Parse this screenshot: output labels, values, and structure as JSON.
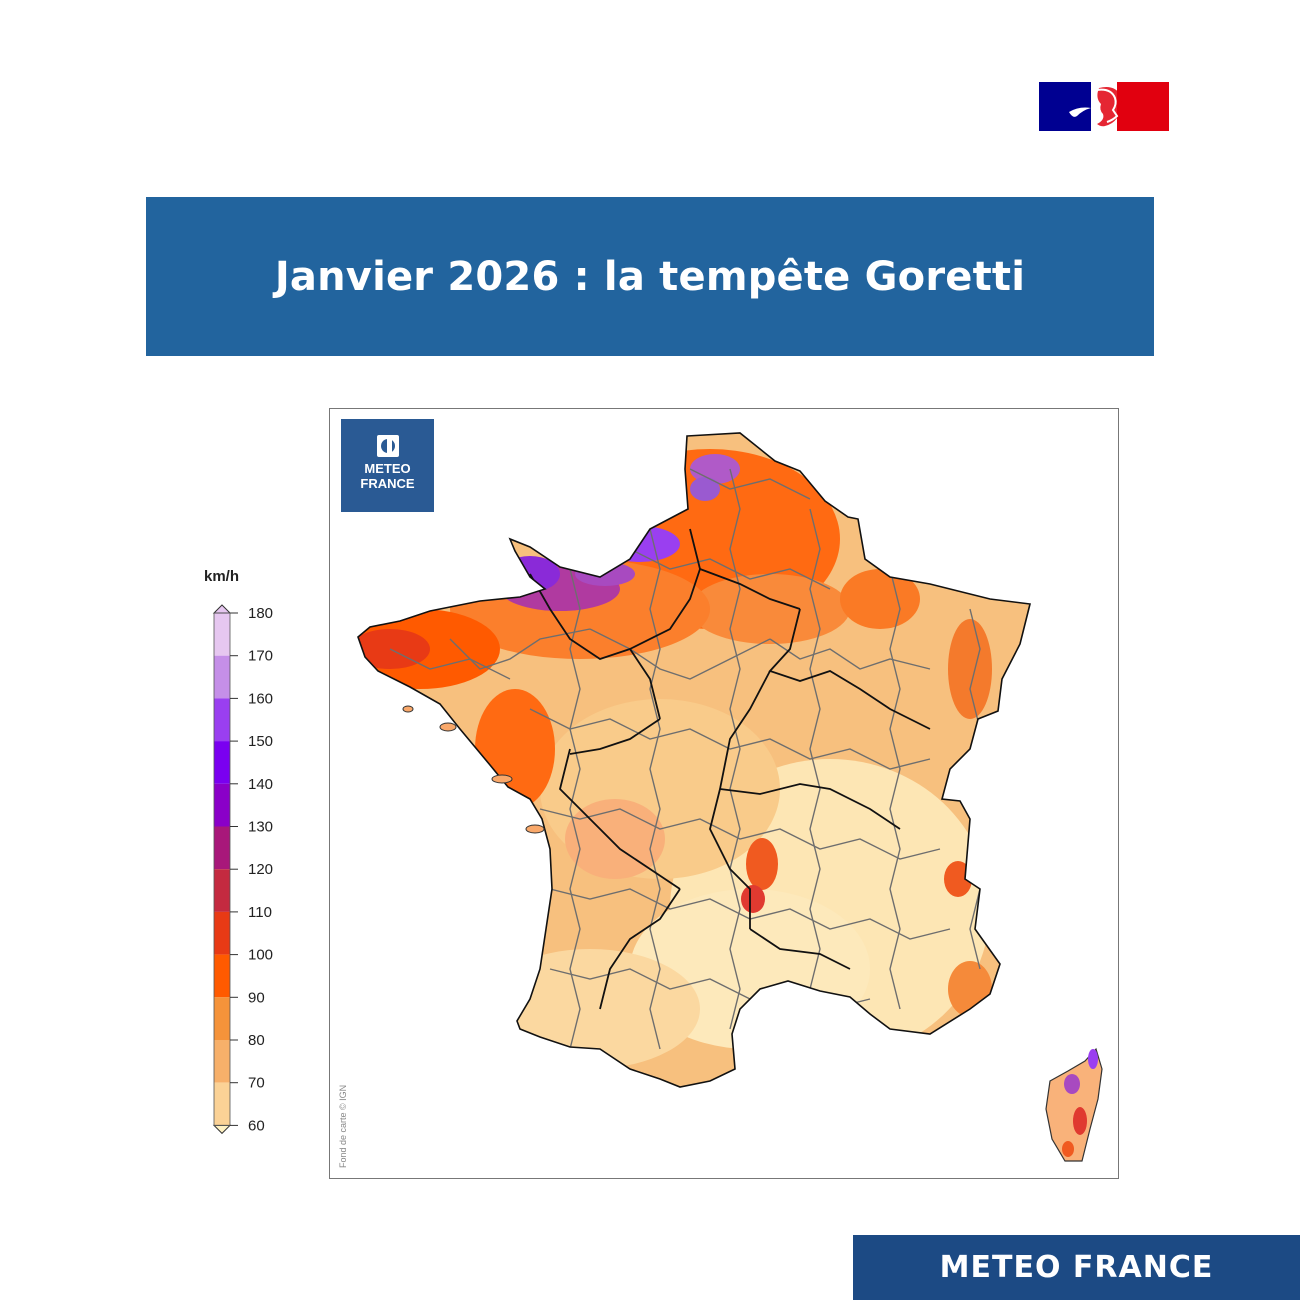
{
  "header": {
    "title": "Janvier 2026 : la tempête Goretti",
    "republique_logo_icon": "marianne-flag-logo"
  },
  "map": {
    "logo_text_line1": "METEO",
    "logo_text_line2": "FRANCE",
    "logo_icon": "meteo-france-logo-icon",
    "credit": "Fond de carte © IGN"
  },
  "legend": {
    "unit": "km/h",
    "ticks": [
      "180",
      "170",
      "160",
      "150",
      "140",
      "130",
      "120",
      "110",
      "100",
      "90",
      "80",
      "70",
      "60"
    ],
    "colors": [
      "#e6c7f0",
      "#c58fe8",
      "#9a3ff0",
      "#7a00f0",
      "#8a00c8",
      "#a8187a",
      "#c42a40",
      "#e83a15",
      "#ff5a00",
      "#f5933a",
      "#f7b06a",
      "#fbd296",
      "#fff1c2"
    ]
  },
  "footer": {
    "brand": "METEO FRANCE"
  }
}
